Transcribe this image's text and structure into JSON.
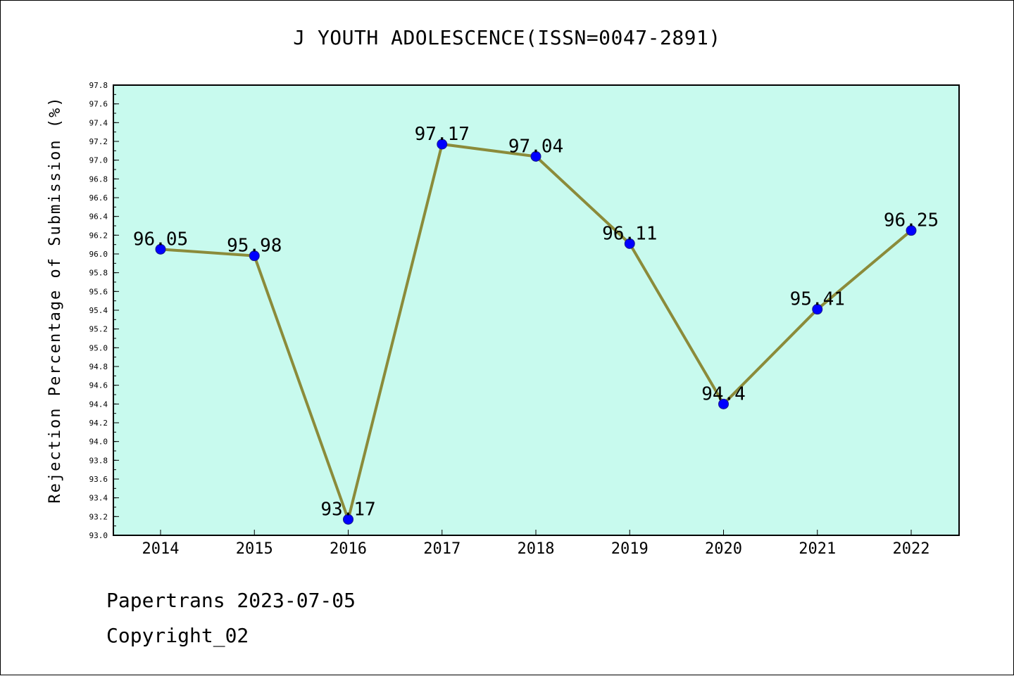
{
  "chart_data": {
    "type": "line",
    "title": "J YOUTH ADOLESCENCE(ISSN=0047-2891)",
    "ylabel": "Rejection Percentage of Submission (%)",
    "xlabel": "",
    "categories": [
      "2014",
      "2015",
      "2016",
      "2017",
      "2018",
      "2019",
      "2020",
      "2021",
      "2022"
    ],
    "series": [
      {
        "values": [
          96.05,
          95.98,
          93.17,
          97.17,
          97.04,
          96.11,
          94.4,
          95.41,
          96.25
        ],
        "labels": [
          "96.05",
          "95.98",
          "93.17",
          "97.17",
          "97.04",
          "96.11",
          "94.4",
          "95.41",
          "96.25"
        ]
      }
    ],
    "ylim": [
      93.0,
      97.8
    ],
    "yticks": [
      "93.0",
      "93.2",
      "93.4",
      "93.6",
      "93.8",
      "94.0",
      "94.2",
      "94.4",
      "94.6",
      "94.8",
      "95.0",
      "95.2",
      "95.4",
      "95.6",
      "95.8",
      "96.0",
      "96.2",
      "96.4",
      "96.6",
      "96.8",
      "97.0",
      "97.2",
      "97.4",
      "97.6",
      "97.8"
    ],
    "grid": false,
    "colors": {
      "plot_background": "#c8faee",
      "line": "#8b8b3a",
      "marker": "#0000ff"
    }
  },
  "footer": {
    "line1": "Papertrans 2023-07-05",
    "line2": "Copyright_02"
  }
}
